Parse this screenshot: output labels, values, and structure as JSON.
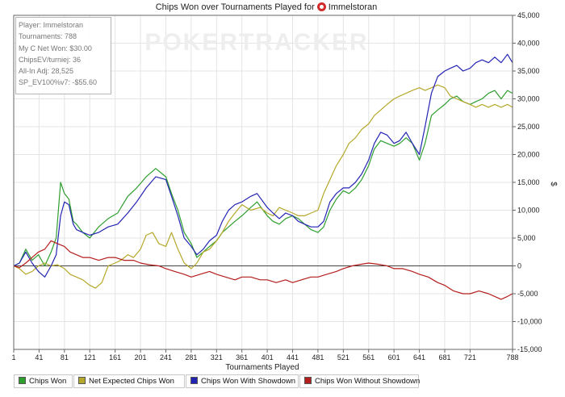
{
  "chart_data": {
    "type": "line",
    "title_prefix": "Chips Won over Tournaments Played for",
    "title_player": "Immelstoran",
    "xlabel": "Tournaments Played",
    "ylabel": "$",
    "xlim": [
      1,
      788
    ],
    "ylim": [
      -15000,
      45000
    ],
    "x_ticks": [
      1,
      41,
      81,
      121,
      161,
      201,
      241,
      281,
      321,
      361,
      401,
      441,
      481,
      521,
      561,
      601,
      641,
      681,
      721,
      788
    ],
    "y_ticks": [
      -15000,
      -10000,
      -5000,
      0,
      5000,
      10000,
      15000,
      20000,
      25000,
      30000,
      35000,
      40000,
      45000
    ],
    "y_tick_labels": [
      "-15,000",
      "-10,000",
      "-5,000",
      "0",
      "5,000",
      "10,000",
      "15,000",
      "20,000",
      "25,000",
      "30,000",
      "35,000",
      "40,000",
      "45,000"
    ],
    "watermark": "POKERTRACKER",
    "series": [
      {
        "name": "Chips Won",
        "color": "#2e9e2e",
        "x": [
          1,
          10,
          20,
          30,
          40,
          50,
          60,
          68,
          75,
          81,
          88,
          95,
          100,
          110,
          121,
          135,
          150,
          165,
          181,
          195,
          210,
          225,
          241,
          250,
          260,
          270,
          281,
          290,
          300,
          310,
          321,
          330,
          340,
          350,
          361,
          375,
          385,
          401,
          410,
          420,
          430,
          441,
          450,
          460,
          470,
          481,
          490,
          500,
          510,
          521,
          530,
          540,
          550,
          561,
          570,
          580,
          590,
          601,
          610,
          620,
          630,
          641,
          650,
          660,
          670,
          681,
          690,
          700,
          710,
          721,
          730,
          740,
          750,
          760,
          770,
          780,
          788
        ],
        "y": [
          0,
          500,
          3000,
          1000,
          2000,
          0,
          2500,
          5000,
          15000,
          13000,
          12000,
          8000,
          7500,
          6000,
          5000,
          7000,
          8500,
          9500,
          12500,
          14000,
          16000,
          17500,
          16000,
          13000,
          10000,
          6000,
          4000,
          1500,
          2500,
          3500,
          4500,
          6000,
          7000,
          8000,
          9000,
          10500,
          11500,
          9000,
          8000,
          7500,
          8500,
          9000,
          8500,
          7500,
          6500,
          6000,
          7000,
          10000,
          12000,
          13500,
          13000,
          14000,
          15500,
          18000,
          21000,
          22500,
          22000,
          21500,
          22000,
          23000,
          22000,
          19000,
          22000,
          27000,
          28000,
          29000,
          30000,
          30500,
          29500,
          29000,
          29500,
          30000,
          31000,
          31500,
          30000,
          31500,
          31000
        ]
      },
      {
        "name": "Net Expected Chips Won",
        "color": "#b5a82a",
        "x": [
          1,
          10,
          20,
          30,
          40,
          50,
          60,
          70,
          81,
          90,
          100,
          110,
          121,
          130,
          140,
          150,
          161,
          170,
          181,
          190,
          201,
          210,
          220,
          230,
          241,
          250,
          260,
          270,
          281,
          290,
          300,
          310,
          321,
          330,
          340,
          350,
          361,
          375,
          390,
          401,
          410,
          420,
          430,
          441,
          450,
          460,
          470,
          481,
          490,
          500,
          510,
          521,
          530,
          540,
          550,
          561,
          570,
          580,
          590,
          601,
          610,
          620,
          630,
          641,
          650,
          660,
          670,
          681,
          690,
          700,
          710,
          721,
          730,
          740,
          750,
          760,
          770,
          780,
          788
        ],
        "y": [
          0,
          -500,
          -1500,
          -1000,
          0,
          500,
          0,
          200,
          -500,
          -1500,
          -2000,
          -2500,
          -3500,
          -4000,
          -3000,
          0,
          500,
          1000,
          2000,
          1500,
          3000,
          5500,
          6000,
          4000,
          3500,
          6000,
          3000,
          500,
          -500,
          500,
          2500,
          3000,
          4500,
          6000,
          8000,
          9500,
          11000,
          10000,
          10500,
          9500,
          9000,
          10500,
          10000,
          9500,
          9000,
          9000,
          9500,
          10000,
          13000,
          15500,
          18000,
          20000,
          22000,
          23000,
          24500,
          25500,
          27000,
          28000,
          29000,
          30000,
          30500,
          31000,
          31500,
          32000,
          31500,
          32000,
          32500,
          32000,
          30500,
          30000,
          29500,
          29000,
          28500,
          29000,
          28500,
          29000,
          28500,
          29000,
          28500
        ]
      },
      {
        "name": "Chips Won With Showdown",
        "color": "#2424b4",
        "x": [
          1,
          10,
          20,
          30,
          40,
          50,
          60,
          68,
          75,
          81,
          88,
          95,
          100,
          110,
          121,
          135,
          150,
          165,
          181,
          195,
          210,
          225,
          241,
          250,
          260,
          270,
          281,
          290,
          300,
          310,
          321,
          330,
          340,
          350,
          361,
          375,
          385,
          401,
          410,
          420,
          430,
          441,
          450,
          460,
          470,
          481,
          490,
          500,
          510,
          521,
          530,
          540,
          550,
          561,
          570,
          580,
          590,
          601,
          610,
          620,
          630,
          641,
          650,
          660,
          670,
          681,
          690,
          700,
          710,
          721,
          730,
          740,
          750,
          760,
          770,
          780,
          788
        ],
        "y": [
          0,
          500,
          2500,
          500,
          -1000,
          -2000,
          0,
          2000,
          9000,
          11500,
          11000,
          7500,
          6500,
          6000,
          5500,
          6000,
          7000,
          7500,
          9500,
          11500,
          14000,
          16000,
          15500,
          12500,
          9000,
          5000,
          3500,
          2000,
          3000,
          4500,
          5500,
          8000,
          10000,
          11000,
          11500,
          12500,
          13000,
          10500,
          9500,
          8500,
          9500,
          9000,
          8000,
          7500,
          7000,
          7000,
          8000,
          11500,
          13000,
          14000,
          14000,
          15000,
          16500,
          19000,
          22000,
          24000,
          23500,
          22000,
          22500,
          24000,
          22000,
          20000,
          25000,
          31000,
          34000,
          35000,
          35500,
          36000,
          35000,
          35500,
          36500,
          37000,
          36500,
          37500,
          36500,
          38000,
          36500
        ]
      },
      {
        "name": "Chips Won Without Showdown",
        "color": "#b41e1e",
        "x": [
          1,
          10,
          20,
          30,
          40,
          50,
          60,
          70,
          81,
          90,
          100,
          110,
          121,
          135,
          150,
          161,
          175,
          190,
          201,
          215,
          230,
          241,
          255,
          270,
          281,
          295,
          310,
          321,
          335,
          350,
          361,
          375,
          390,
          401,
          415,
          430,
          441,
          455,
          470,
          481,
          495,
          510,
          521,
          535,
          550,
          561,
          575,
          590,
          601,
          615,
          630,
          641,
          655,
          670,
          681,
          695,
          710,
          721,
          735,
          750,
          760,
          770,
          780,
          788
        ],
        "y": [
          0,
          -300,
          500,
          1500,
          2500,
          3000,
          4500,
          4000,
          3500,
          2500,
          2000,
          1500,
          1500,
          1000,
          1500,
          1500,
          1000,
          1000,
          500,
          200,
          0,
          -500,
          -1000,
          -1500,
          -2000,
          -1500,
          -1000,
          -1500,
          -2000,
          -2500,
          -2000,
          -2000,
          -2500,
          -2500,
          -3000,
          -2500,
          -3000,
          -2500,
          -2000,
          -2000,
          -1500,
          -1000,
          -500,
          0,
          300,
          500,
          300,
          0,
          -500,
          -500,
          -1000,
          -1500,
          -2000,
          -3000,
          -3500,
          -4500,
          -5000,
          -5000,
          -4500,
          -5000,
          -5500,
          -6000,
          -5500,
          -5000
        ]
      }
    ]
  },
  "stats_box": [
    "Player: Immelstoran",
    "Tournaments: 788",
    "My C Net Won: $30.00",
    "ChipsEV/turniej: 36",
    "All-In Adj: 28,525",
    "SP_EV100%v7: -$55.60"
  ],
  "legend": [
    {
      "label": "Chips Won",
      "color": "#2e9e2e"
    },
    {
      "label": "Net Expected Chips Won",
      "color": "#b5a82a"
    },
    {
      "label": "Chips Won With Showdown",
      "color": "#2424b4"
    },
    {
      "label": "Chips Won Without Showdown",
      "color": "#b41e1e"
    }
  ]
}
